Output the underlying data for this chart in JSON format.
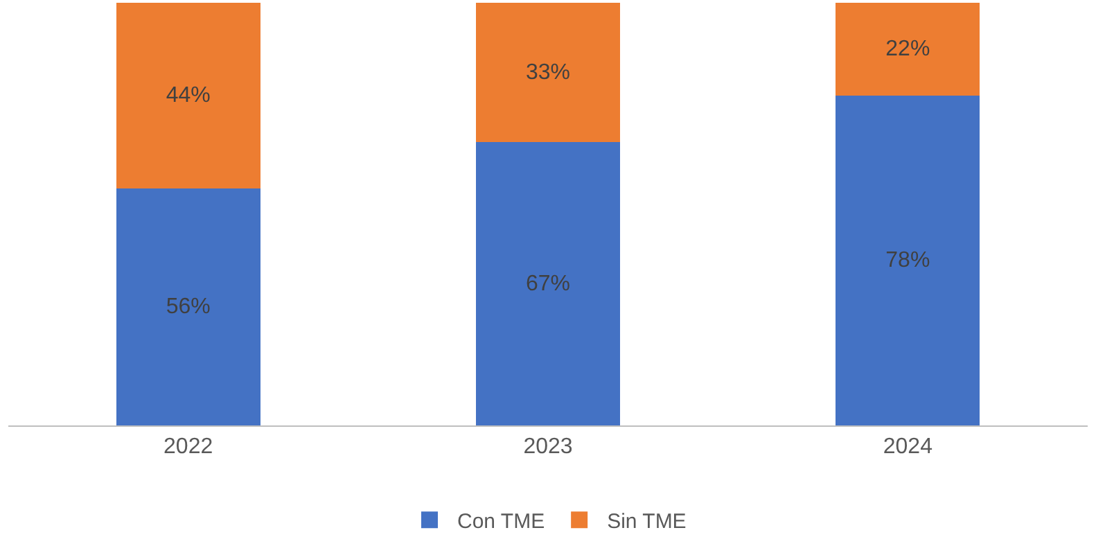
{
  "chart_data": {
    "type": "bar",
    "stacked": true,
    "categories": [
      "2022",
      "2023",
      "2024"
    ],
    "ylim": [
      0,
      100
    ],
    "tick_labels": "x",
    "legend": "bottom",
    "series": [
      {
        "name": "Con TME",
        "color": "#4472c4",
        "values": [
          56,
          67,
          78
        ],
        "value_labels": [
          "56%",
          "67%",
          "78%"
        ]
      },
      {
        "name": "Sin TME",
        "color": "#ed7d31",
        "values": [
          44,
          33,
          22
        ],
        "value_labels": [
          "44%",
          "33%",
          "22%"
        ]
      }
    ]
  }
}
